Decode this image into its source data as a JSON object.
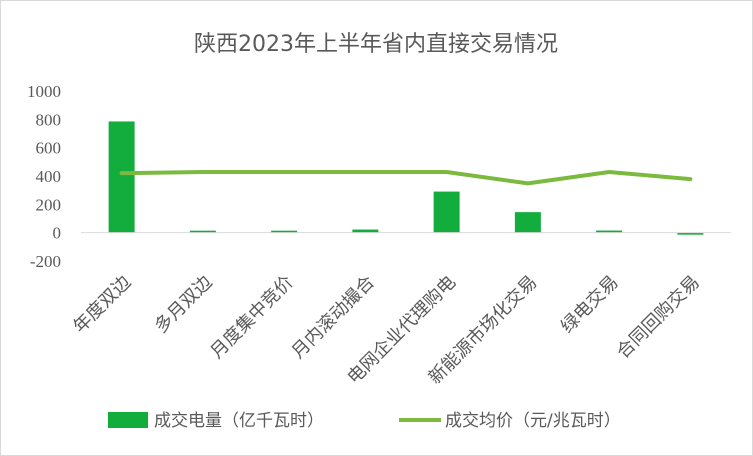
{
  "chart_data": {
    "type": "bar",
    "title": "陕西2023年上半年省内直接交易情况",
    "categories": [
      "年度双边",
      "多月双边",
      "月度集中竞价",
      "月内滚动撮合",
      "电网企业代理购电",
      "新能源市场化交易",
      "绿电交易",
      "合同回购交易"
    ],
    "ylim": [
      -200,
      1000
    ],
    "yticks": [
      -200,
      0,
      200,
      400,
      600,
      800,
      1000
    ],
    "grid": false,
    "legend_position": "bottom",
    "series": [
      {
        "name": "成交电量（亿千瓦时）",
        "kind": "bar",
        "color": "#13ad3e",
        "values": [
          785,
          5,
          5,
          22,
          290,
          145,
          15,
          -8
        ]
      },
      {
        "name": "成交均价（元/兆瓦时）",
        "kind": "line",
        "color": "#7bba3f",
        "values": [
          420,
          428,
          428,
          428,
          428,
          348,
          428,
          378
        ]
      }
    ]
  }
}
